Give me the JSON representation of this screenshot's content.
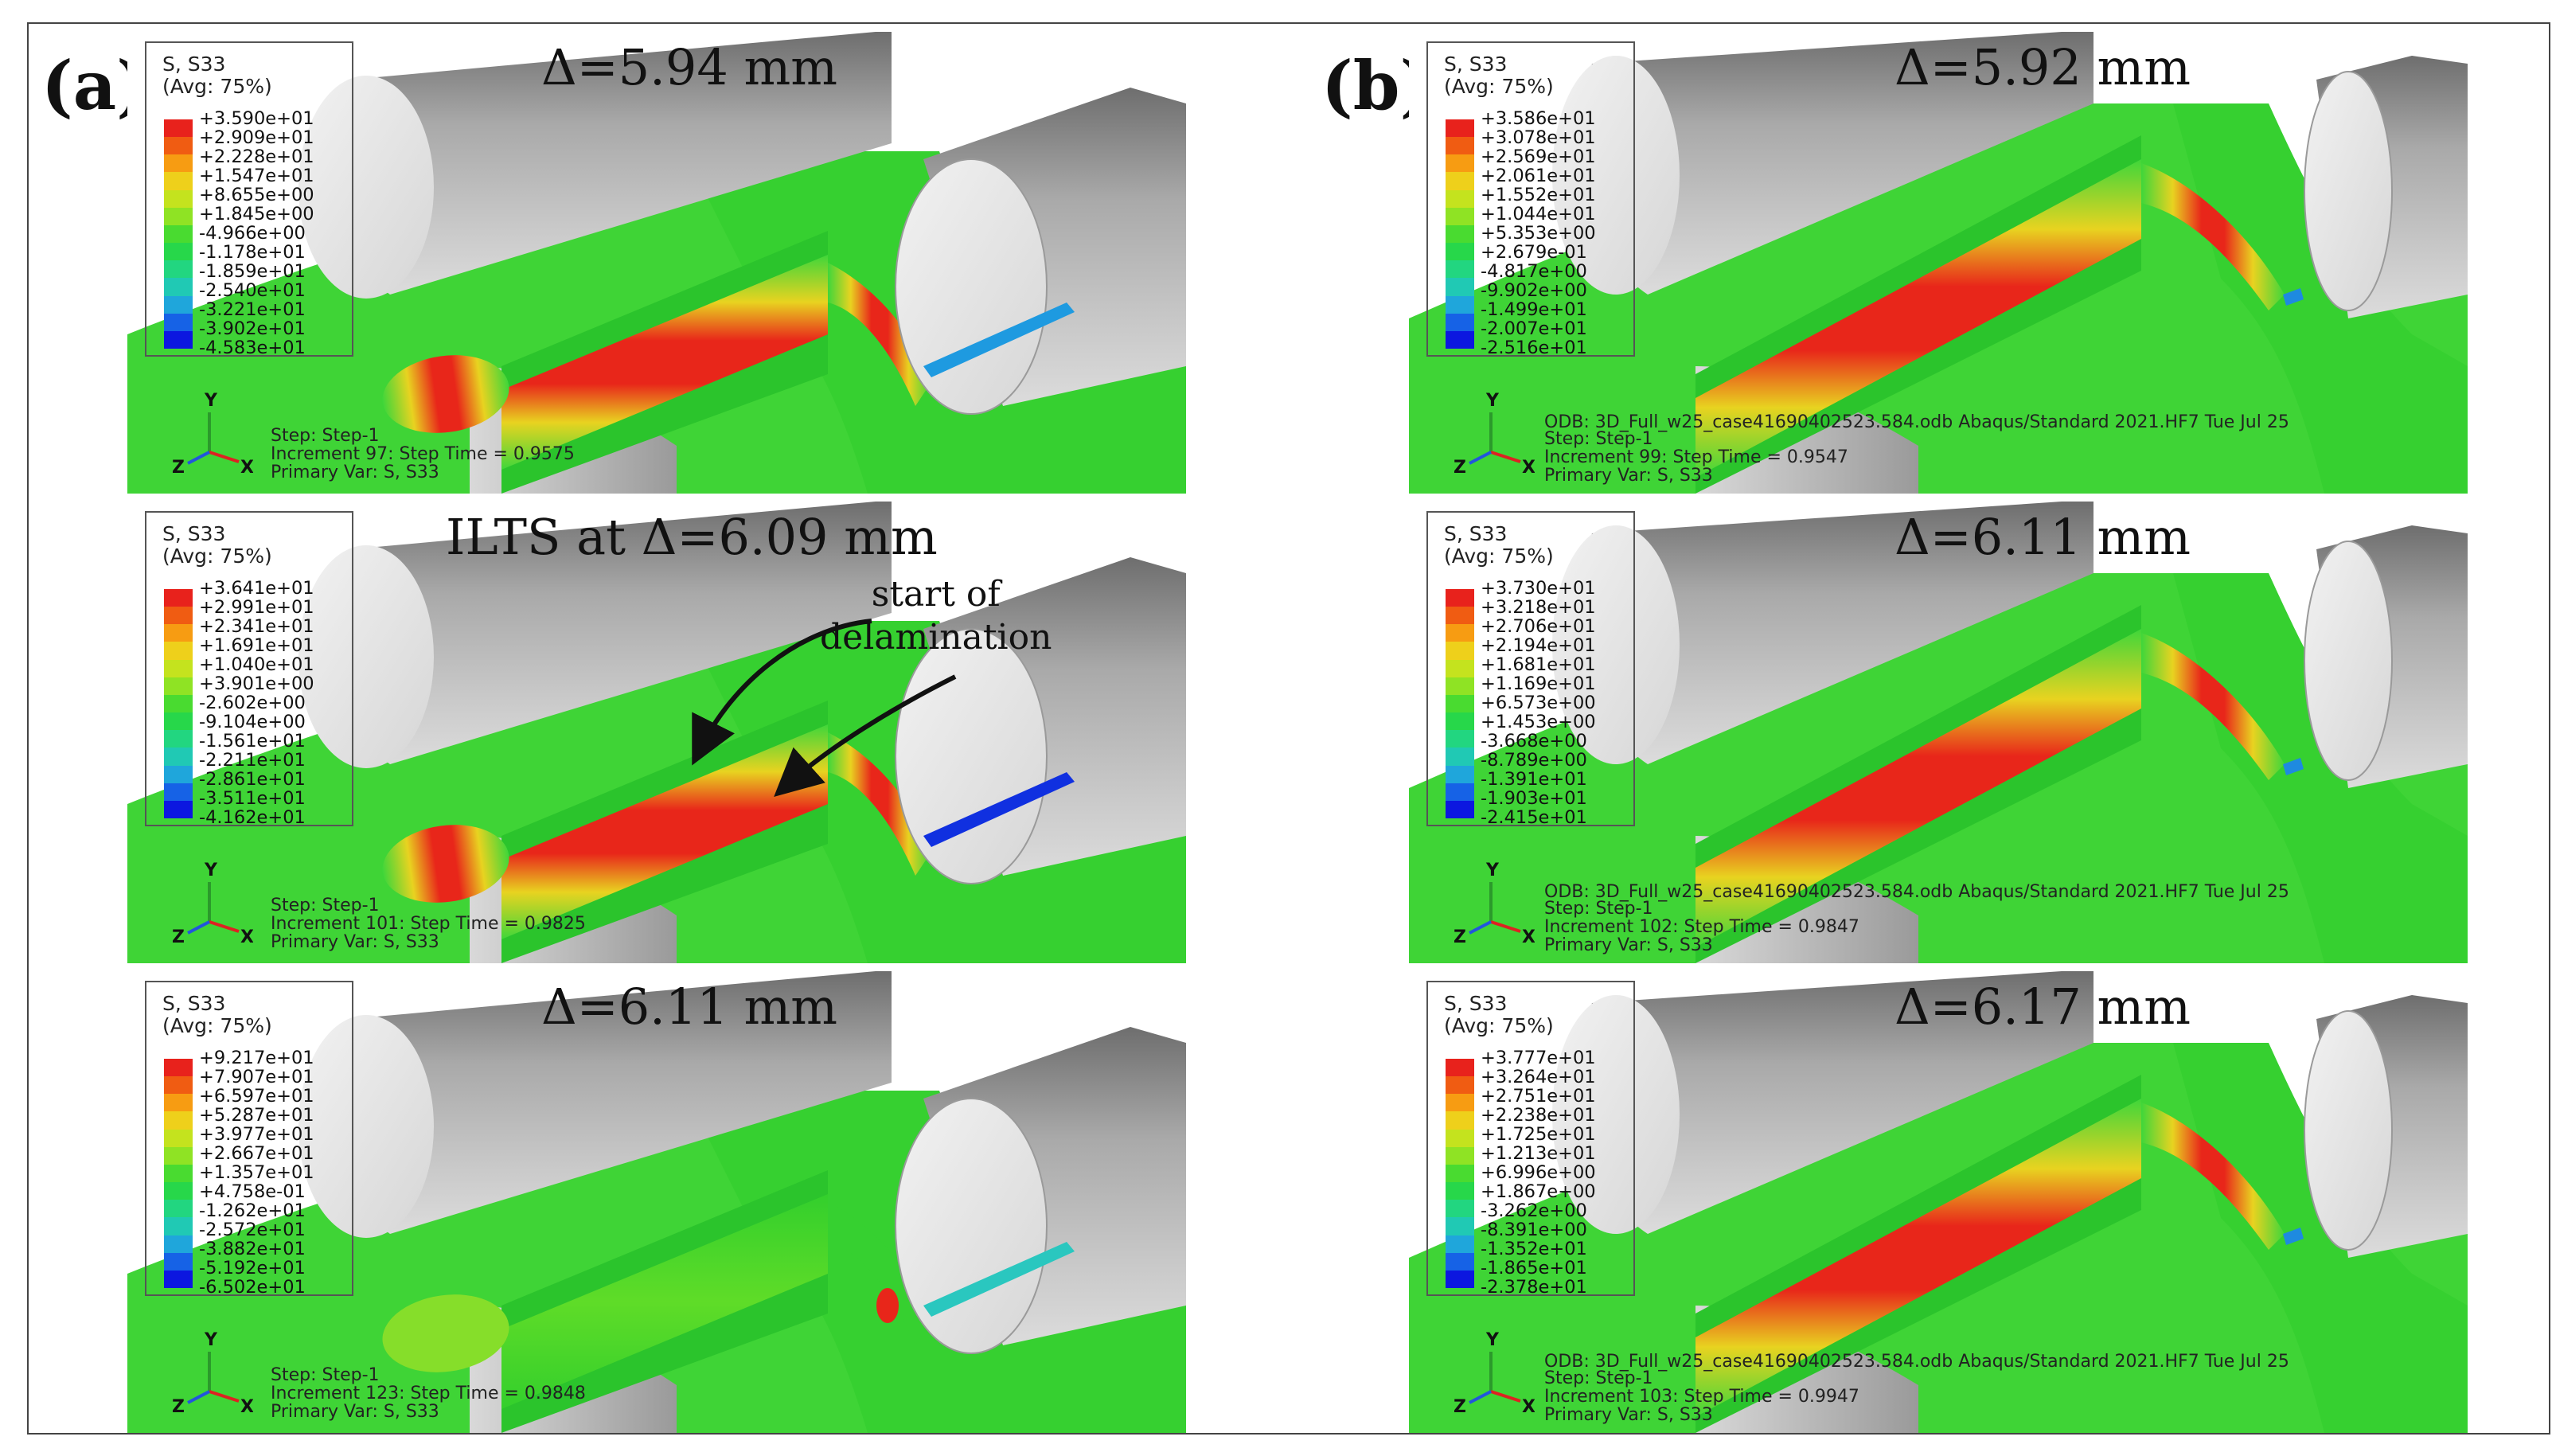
{
  "labels": {
    "a": "(a)",
    "b": "(b)"
  },
  "legend_title_1": "S, S33",
  "legend_title_2": "(Avg: 75%)",
  "axes": {
    "y": "Y",
    "z": "Z",
    "x": "X"
  },
  "colors": [
    "#e8221c",
    "#f05c12",
    "#f79c12",
    "#eed01b",
    "#c4e31e",
    "#8fe324",
    "#49db30",
    "#27d74a",
    "#22d680",
    "#20c9b4",
    "#1fa6db",
    "#1662e6",
    "#0c17e0"
  ],
  "panels": [
    {
      "id": "a1",
      "title": "Δ=5.94 mm",
      "ticks": [
        "+3.590e+01",
        "+2.909e+01",
        "+2.228e+01",
        "+1.547e+01",
        "+8.655e+00",
        "+1.845e+00",
        "-4.966e+00",
        "-1.178e+01",
        "-1.859e+01",
        "-2.540e+01",
        "-3.221e+01",
        "-3.902e+01",
        "-4.583e+01"
      ],
      "step": "Step: Step-1",
      "increment": "Increment      97: Step Time =    0.9575",
      "primary": "Primary Var: S, S33"
    },
    {
      "id": "b1",
      "title": "Δ=5.92 mm",
      "ticks": [
        "+3.586e+01",
        "+3.078e+01",
        "+2.569e+01",
        "+2.061e+01",
        "+1.552e+01",
        "+1.044e+01",
        "+5.353e+00",
        "+2.679e-01",
        "-4.817e+00",
        "-9.902e+00",
        "-1.499e+01",
        "-2.007e+01",
        "-2.516e+01"
      ],
      "odb": "ODB: 3D_Full_w25_case41690402523.584.odb     Abaqus/Standard 2021.HF7     Tue Jul 25",
      "step": "Step: Step-1",
      "increment": "Increment      99: Step Time =    0.9547",
      "primary": "Primary Var: S, S33"
    },
    {
      "id": "a2",
      "title": "ILTS at Δ=6.09 mm",
      "annotation_1": "start of",
      "annotation_2": "delamination",
      "ticks": [
        "+3.641e+01",
        "+2.991e+01",
        "+2.341e+01",
        "+1.691e+01",
        "+1.040e+01",
        "+3.901e+00",
        "-2.602e+00",
        "-9.104e+00",
        "-1.561e+01",
        "-2.211e+01",
        "-2.861e+01",
        "-3.511e+01",
        "-4.162e+01"
      ],
      "step": "Step: Step-1",
      "increment": "Increment     101: Step Time =    0.9825",
      "primary": "Primary Var: S, S33"
    },
    {
      "id": "b2",
      "title": "Δ=6.11 mm",
      "ticks": [
        "+3.730e+01",
        "+3.218e+01",
        "+2.706e+01",
        "+2.194e+01",
        "+1.681e+01",
        "+1.169e+01",
        "+6.573e+00",
        "+1.453e+00",
        "-3.668e+00",
        "-8.789e+00",
        "-1.391e+01",
        "-1.903e+01",
        "-2.415e+01"
      ],
      "odb": "ODB: 3D_Full_w25_case41690402523.584.odb     Abaqus/Standard 2021.HF7     Tue Jul 25",
      "step": "Step: Step-1",
      "increment": "Increment     102: Step Time =    0.9847",
      "primary": "Primary Var: S, S33"
    },
    {
      "id": "a3",
      "title": "Δ=6.11 mm",
      "ticks": [
        "+9.217e+01",
        "+7.907e+01",
        "+6.597e+01",
        "+5.287e+01",
        "+3.977e+01",
        "+2.667e+01",
        "+1.357e+01",
        "+4.758e-01",
        "-1.262e+01",
        "-2.572e+01",
        "-3.882e+01",
        "-5.192e+01",
        "-6.502e+01"
      ],
      "step": "Step: Step-1",
      "increment": "Increment     123: Step Time =    0.9848",
      "primary": "Primary Var: S, S33"
    },
    {
      "id": "b3",
      "title": "Δ=6.17 mm",
      "ticks": [
        "+3.777e+01",
        "+3.264e+01",
        "+2.751e+01",
        "+2.238e+01",
        "+1.725e+01",
        "+1.213e+01",
        "+6.996e+00",
        "+1.867e+00",
        "-3.262e+00",
        "-8.391e+00",
        "-1.352e+01",
        "-1.865e+01",
        "-2.378e+01"
      ],
      "odb": "ODB: 3D_Full_w25_case41690402523.584.odb     Abaqus/Standard 2021.HF7     Tue Jul 25",
      "step": "Step: Step-1",
      "increment": "Increment     103: Step Time =    0.9947",
      "primary": "Primary Var: S, S33"
    }
  ]
}
